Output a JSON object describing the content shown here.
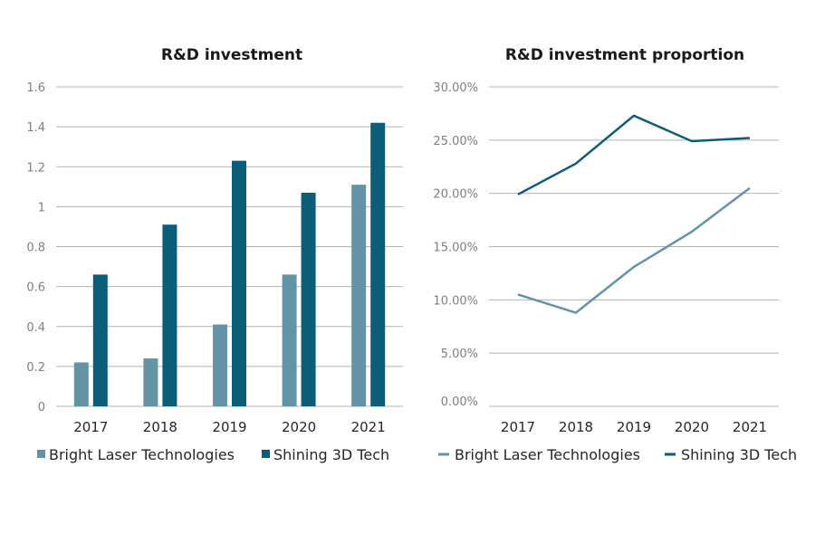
{
  "colors": {
    "series_a": "#6394a6",
    "series_b": "#0b5d78",
    "grid": "#b3b3b3"
  },
  "chart_data": [
    {
      "type": "bar",
      "title": "R&D investment",
      "categories": [
        "2017",
        "2018",
        "2019",
        "2020",
        "2021"
      ],
      "ylim": [
        0,
        1.6
      ],
      "yticks": [
        0,
        0.2,
        0.4,
        0.6,
        0.8,
        1,
        1.2,
        1.4,
        1.6
      ],
      "ytick_labels": [
        "0",
        "0.2",
        "0.4",
        "0.6",
        "0.8",
        "1",
        "1.2",
        "1.4",
        "1.6"
      ],
      "series": [
        {
          "name": "Bright Laser Technologies",
          "values": [
            0.22,
            0.24,
            0.41,
            0.66,
            1.11
          ]
        },
        {
          "name": "Shining 3D Tech",
          "values": [
            0.66,
            0.91,
            1.23,
            1.07,
            1.42
          ]
        }
      ],
      "legend": "bottom"
    },
    {
      "type": "line",
      "title": "R&D investment proportion",
      "categories": [
        "2017",
        "2018",
        "2019",
        "2020",
        "2021"
      ],
      "ylim": [
        0,
        30
      ],
      "yticks": [
        0,
        5,
        10,
        15,
        20,
        25,
        30
      ],
      "ytick_labels": [
        "0.00%",
        "5.00%",
        "10.00%",
        "15.00%",
        "20.00%",
        "25.00%",
        "30.00%"
      ],
      "series": [
        {
          "name": "Bright Laser Technologies",
          "values": [
            10.5,
            8.8,
            13.1,
            16.4,
            20.5
          ]
        },
        {
          "name": "Shining 3D Tech",
          "values": [
            19.9,
            22.8,
            27.3,
            24.9,
            25.2
          ]
        }
      ],
      "legend": "bottom"
    }
  ]
}
